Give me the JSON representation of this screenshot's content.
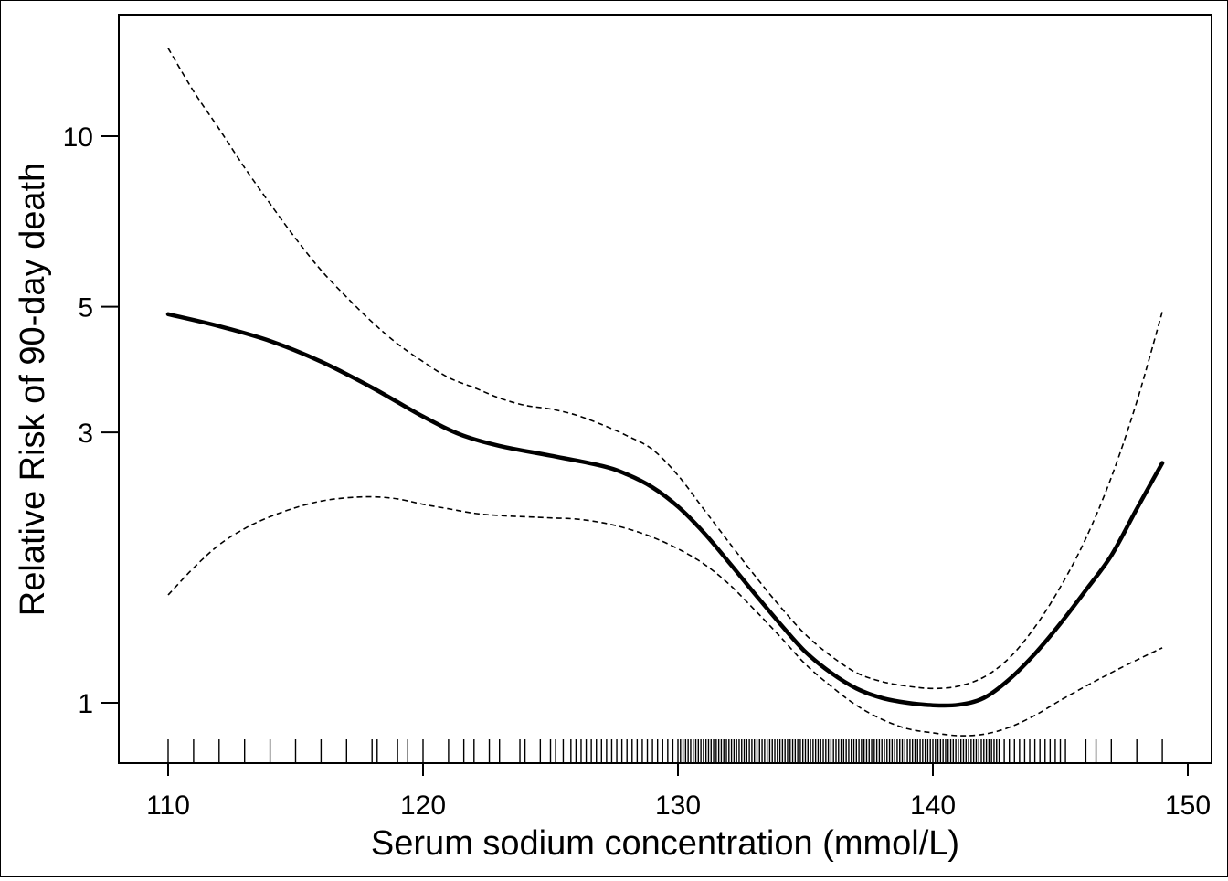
{
  "chart_data": {
    "type": "line",
    "title": "",
    "xlabel": "Serum sodium concentration (mmol/L)",
    "ylabel": "Relative Risk of 90-day death",
    "x_scale": "linear",
    "y_scale": "log",
    "xlim": [
      108,
      151
    ],
    "ylim": [
      0.86,
      15
    ],
    "x_ticks": [
      110,
      120,
      130,
      140,
      150
    ],
    "y_ticks": [
      1,
      3,
      5,
      10
    ],
    "grid": false,
    "legend": "none",
    "series": [
      {
        "role": "estimate",
        "style": "solid-thick",
        "color": "#000000",
        "points": [
          [
            110,
            4.85
          ],
          [
            112,
            4.62
          ],
          [
            114,
            4.35
          ],
          [
            116,
            4.0
          ],
          [
            118,
            3.6
          ],
          [
            120,
            3.2
          ],
          [
            121.5,
            2.97
          ],
          [
            123,
            2.84
          ],
          [
            125,
            2.73
          ],
          [
            127,
            2.62
          ],
          [
            128,
            2.53
          ],
          [
            129,
            2.4
          ],
          [
            130,
            2.22
          ],
          [
            131,
            2.0
          ],
          [
            132,
            1.77
          ],
          [
            133,
            1.56
          ],
          [
            134,
            1.38
          ],
          [
            135,
            1.23
          ],
          [
            136,
            1.13
          ],
          [
            137,
            1.06
          ],
          [
            138,
            1.02
          ],
          [
            139,
            1.0
          ],
          [
            140,
            0.99
          ],
          [
            141,
            0.992
          ],
          [
            142,
            1.02
          ],
          [
            143,
            1.1
          ],
          [
            144,
            1.22
          ],
          [
            145,
            1.38
          ],
          [
            146,
            1.58
          ],
          [
            147,
            1.82
          ],
          [
            148,
            2.2
          ],
          [
            149,
            2.65
          ]
        ]
      },
      {
        "role": "upper-ci",
        "style": "dashed",
        "color": "#000000",
        "points": [
          [
            110,
            14.3
          ],
          [
            111,
            12.0
          ],
          [
            112,
            10.3
          ],
          [
            113,
            8.8
          ],
          [
            114,
            7.6
          ],
          [
            115,
            6.6
          ],
          [
            116,
            5.8
          ],
          [
            117,
            5.2
          ],
          [
            118,
            4.7
          ],
          [
            119,
            4.3
          ],
          [
            120,
            4.0
          ],
          [
            121,
            3.75
          ],
          [
            122,
            3.6
          ],
          [
            123,
            3.45
          ],
          [
            124,
            3.35
          ],
          [
            125,
            3.3
          ],
          [
            126,
            3.22
          ],
          [
            127,
            3.1
          ],
          [
            128,
            2.96
          ],
          [
            129,
            2.8
          ],
          [
            130,
            2.52
          ],
          [
            131,
            2.2
          ],
          [
            132,
            1.92
          ],
          [
            133,
            1.68
          ],
          [
            134,
            1.48
          ],
          [
            135,
            1.32
          ],
          [
            136,
            1.21
          ],
          [
            137,
            1.13
          ],
          [
            138,
            1.09
          ],
          [
            139,
            1.07
          ],
          [
            140,
            1.06
          ],
          [
            141,
            1.07
          ],
          [
            142,
            1.11
          ],
          [
            143,
            1.2
          ],
          [
            144,
            1.36
          ],
          [
            145,
            1.6
          ],
          [
            146,
            1.95
          ],
          [
            147,
            2.5
          ],
          [
            148,
            3.4
          ],
          [
            149,
            4.9
          ]
        ]
      },
      {
        "role": "lower-ci",
        "style": "dashed",
        "color": "#000000",
        "points": [
          [
            110,
            1.55
          ],
          [
            111,
            1.73
          ],
          [
            112,
            1.9
          ],
          [
            113,
            2.03
          ],
          [
            114,
            2.13
          ],
          [
            115,
            2.21
          ],
          [
            116,
            2.27
          ],
          [
            117,
            2.3
          ],
          [
            118,
            2.31
          ],
          [
            119,
            2.29
          ],
          [
            120,
            2.24
          ],
          [
            121,
            2.2
          ],
          [
            122,
            2.16
          ],
          [
            123,
            2.14
          ],
          [
            124,
            2.13
          ],
          [
            125,
            2.12
          ],
          [
            126,
            2.11
          ],
          [
            127,
            2.08
          ],
          [
            128,
            2.03
          ],
          [
            129,
            1.96
          ],
          [
            130,
            1.87
          ],
          [
            131,
            1.76
          ],
          [
            132,
            1.62
          ],
          [
            133,
            1.46
          ],
          [
            134,
            1.31
          ],
          [
            135,
            1.17
          ],
          [
            136,
            1.07
          ],
          [
            137,
            0.99
          ],
          [
            138,
            0.935
          ],
          [
            139,
            0.9
          ],
          [
            140,
            0.885
          ],
          [
            141,
            0.875
          ],
          [
            142,
            0.88
          ],
          [
            143,
            0.905
          ],
          [
            144,
            0.95
          ],
          [
            145,
            1.01
          ],
          [
            146,
            1.07
          ],
          [
            147,
            1.13
          ],
          [
            148,
            1.19
          ],
          [
            149,
            1.25
          ]
        ]
      }
    ],
    "rug": {
      "description": "observations of serum sodium concentration (mmol/L)",
      "values": [
        110,
        111,
        112,
        113,
        114,
        115,
        116,
        117,
        118,
        118.2,
        119,
        119.4,
        120,
        121,
        121.6,
        122,
        122.6,
        123,
        123.8,
        124,
        124.6,
        125,
        125.2,
        125.5,
        125.8,
        126,
        126.2,
        126.4,
        126.6,
        126.8,
        127,
        127.2,
        127.4,
        127.6,
        127.8,
        128,
        128.2,
        128.4,
        128.6,
        128.8,
        129,
        129.2,
        129.4,
        129.6,
        129.8,
        130,
        130.1,
        130.2,
        130.3,
        130.4,
        130.5,
        130.6,
        130.7,
        130.8,
        130.9,
        131,
        131.1,
        131.2,
        131.3,
        131.4,
        131.5,
        131.6,
        131.7,
        131.8,
        131.9,
        132,
        132.1,
        132.2,
        132.3,
        132.4,
        132.5,
        132.6,
        132.7,
        132.8,
        132.9,
        133,
        133.1,
        133.2,
        133.3,
        133.4,
        133.5,
        133.6,
        133.7,
        133.8,
        133.9,
        134,
        134.1,
        134.2,
        134.3,
        134.4,
        134.5,
        134.6,
        134.7,
        134.8,
        134.9,
        135,
        135.1,
        135.2,
        135.3,
        135.4,
        135.5,
        135.6,
        135.7,
        135.8,
        135.9,
        136,
        136.1,
        136.2,
        136.3,
        136.4,
        136.5,
        136.6,
        136.7,
        136.8,
        136.9,
        137,
        137.1,
        137.2,
        137.3,
        137.4,
        137.5,
        137.6,
        137.7,
        137.8,
        137.9,
        138,
        138.1,
        138.2,
        138.3,
        138.4,
        138.5,
        138.6,
        138.7,
        138.8,
        138.9,
        139,
        139.1,
        139.2,
        139.3,
        139.4,
        139.5,
        139.6,
        139.7,
        139.8,
        139.9,
        140,
        140.1,
        140.2,
        140.3,
        140.4,
        140.5,
        140.6,
        140.7,
        140.8,
        140.9,
        141,
        141.1,
        141.2,
        141.3,
        141.4,
        141.5,
        141.6,
        141.7,
        141.8,
        141.9,
        142,
        142.1,
        142.2,
        142.3,
        142.4,
        142.5,
        142.6,
        142.8,
        143,
        143.2,
        143.4,
        143.6,
        143.8,
        144,
        144.2,
        144.4,
        144.6,
        144.8,
        145,
        145.2,
        146,
        146.4,
        147,
        148,
        149
      ]
    }
  }
}
